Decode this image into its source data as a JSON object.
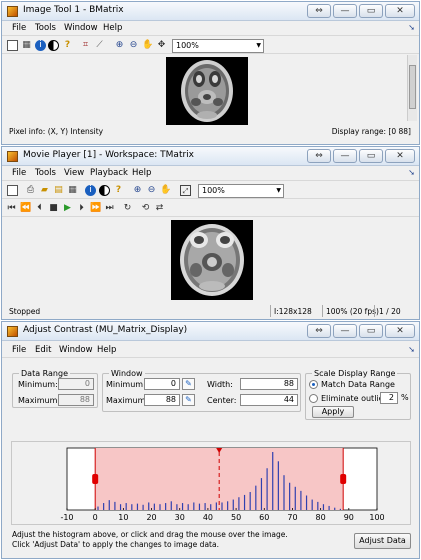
{
  "imagetool": {
    "title": "Image Tool 1 - BMatrix",
    "menus": [
      "File",
      "Tools",
      "Window",
      "Help"
    ],
    "zoom": "100%",
    "pixel_info": "Pixel info: (X, Y)  Intensity",
    "display_range": "Display range: [0 88]"
  },
  "movieplayer": {
    "title": "Movie Player [1] - Workspace: TMatrix",
    "menus": [
      "File",
      "Tools",
      "View",
      "Playback",
      "Help"
    ],
    "zoom": "100%",
    "status": "Stopped",
    "size": "I:128x128",
    "rate": "100% (20 fps)",
    "frame": "1 / 20"
  },
  "contrast": {
    "title": "Adjust Contrast (MU_Matrix_Display)",
    "menus": [
      "File",
      "Edit",
      "Window",
      "Help"
    ],
    "data_range": {
      "label": "Data Range",
      "min_label": "Minimum:",
      "min": "0",
      "max_label": "Maximum:",
      "max": "88"
    },
    "window": {
      "label": "Window",
      "min_label": "Minimum:",
      "min": "0",
      "max_label": "Maximum:",
      "max": "88",
      "width_label": "Width:",
      "width": "88",
      "center_label": "Center:",
      "center": "44"
    },
    "scale": {
      "label": "Scale Display Range",
      "match": "Match Data Range",
      "elim": "Eliminate outliers:",
      "outlier_pct": "2",
      "pct_sign": "%",
      "apply": "Apply"
    },
    "hint1": "Adjust the histogram above, or click and drag the mouse over the image.",
    "hint2": "Click 'Adjust Data' to apply the changes to image data.",
    "adjust_button": "Adjust Data"
  },
  "icons": {
    "close": "✕",
    "restore": "▭",
    "minimize": "—",
    "dock": "⇔"
  },
  "chart_data": {
    "type": "bar",
    "x_ticks": [
      "-10",
      "0",
      "10",
      "20",
      "30",
      "40",
      "50",
      "60",
      "70",
      "80",
      "90",
      "100"
    ],
    "xlim": [
      -10,
      100
    ],
    "window_min": 0,
    "window_max": 88,
    "window_center": 44,
    "x": [
      1,
      3,
      5,
      7,
      9,
      11,
      13,
      15,
      17,
      19,
      21,
      23,
      25,
      27,
      29,
      31,
      33,
      35,
      37,
      39,
      41,
      43,
      45,
      47,
      49,
      51,
      53,
      55,
      57,
      59,
      61,
      63,
      65,
      67,
      69,
      71,
      73,
      75,
      77,
      79,
      81,
      83,
      85,
      87
    ],
    "values": [
      6,
      12,
      17,
      14,
      10,
      12,
      10,
      11,
      9,
      13,
      11,
      10,
      12,
      15,
      10,
      12,
      10,
      13,
      11,
      12,
      10,
      13,
      13,
      15,
      18,
      22,
      26,
      31,
      42,
      55,
      72,
      100,
      84,
      60,
      47,
      40,
      33,
      25,
      18,
      14,
      10,
      7,
      4,
      2
    ]
  }
}
